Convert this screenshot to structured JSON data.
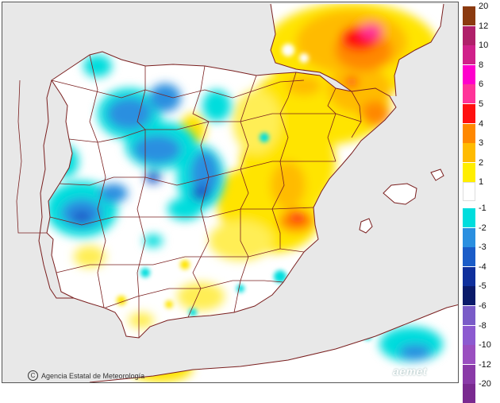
{
  "map": {
    "credit": "Agencia Estatal de Meteorología",
    "credit_symbol": "C",
    "logo": "aemet",
    "land_color": "#ffffff",
    "sea_color": "#e8e8e8",
    "border_color": "#7a1f1f"
  },
  "legend": {
    "classes": [
      {
        "label": "20",
        "color": "#8b3a0f"
      },
      {
        "label": "12",
        "color": "#b0206a"
      },
      {
        "label": "10",
        "color": "#d0208a"
      },
      {
        "label": "8",
        "color": "#ff00cc"
      },
      {
        "label": "6",
        "color": "#ff3399"
      },
      {
        "label": "5",
        "color": "#ff1010"
      },
      {
        "label": "4",
        "color": "#ff8800"
      },
      {
        "label": "3",
        "color": "#ffbb00"
      },
      {
        "label": "2",
        "color": "#ffee00"
      },
      {
        "label": "1",
        "color": "#ffffff"
      },
      {
        "label": "-1",
        "color": "#00dddd"
      },
      {
        "label": "-2",
        "color": "#2a8fe0"
      },
      {
        "label": "-3",
        "color": "#1a5cc8"
      },
      {
        "label": "-4",
        "color": "#0f2f9c"
      },
      {
        "label": "-5",
        "color": "#0a1a6a"
      },
      {
        "label": "-6",
        "color": "#7a5cc8"
      },
      {
        "label": "-8",
        "color": "#8c5ad0"
      },
      {
        "label": "-10",
        "color": "#9a4fc0"
      },
      {
        "label": "-12",
        "color": "#8a3aa8"
      },
      {
        "label": "-20",
        "color": "#7a2a90"
      }
    ]
  }
}
